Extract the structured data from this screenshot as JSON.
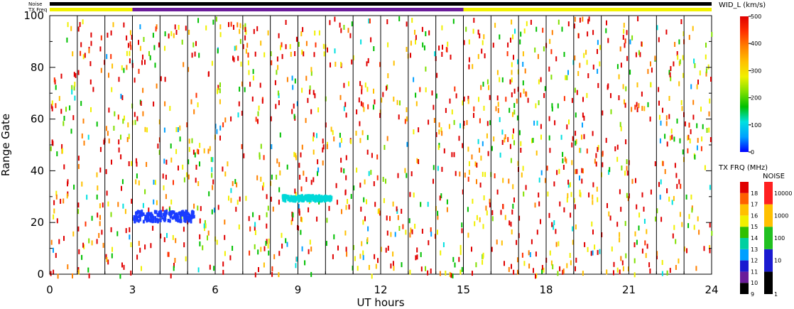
{
  "chart_data": {
    "type": "scatter",
    "xlabel": "UT hours",
    "ylabel": "Range Gate",
    "xlim": [
      0,
      24
    ],
    "ylim": [
      0,
      100
    ],
    "x_ticks": [
      "0",
      "3",
      "6",
      "9",
      "12",
      "15",
      "18",
      "21",
      "24"
    ],
    "y_ticks": [
      "0",
      "20",
      "40",
      "60",
      "80",
      "100"
    ],
    "scan_boundaries_hours": [
      1,
      2,
      3,
      4,
      5,
      6,
      7,
      8,
      9,
      10,
      11,
      12,
      13,
      14,
      15,
      16,
      17,
      18,
      19,
      20,
      21,
      22,
      23
    ],
    "top_strip": {
      "noise_label": "Noise",
      "txfreq_label": "TX Freq",
      "noise_color": "#000000",
      "txfreq_segments": [
        {
          "start": 0,
          "end": 3,
          "color": "#f2f200"
        },
        {
          "start": 3,
          "end": 15,
          "color": "#6a1b9a"
        },
        {
          "start": 15,
          "end": 24,
          "color": "#f2f200"
        }
      ]
    },
    "wid_scale": {
      "title": "WID_L (km/s)",
      "ticks": [
        "0",
        "100",
        "200",
        "300",
        "400",
        "500"
      ],
      "gradient": [
        "#0000ff",
        "#00a0ff",
        "#00e0e0",
        "#00c000",
        "#80e000",
        "#f0f000",
        "#ffc000",
        "#ff8000",
        "#ff3000",
        "#e00000"
      ]
    },
    "txfreq_scale": {
      "title": "TX FRQ (MHz)",
      "labels": [
        "9",
        "10",
        "11",
        "12",
        "13",
        "14",
        "15",
        "16",
        "17",
        "18"
      ],
      "colors": [
        "#000000",
        "#6a1b9a",
        "#1a1ad0",
        "#00a0ff",
        "#00d0a0",
        "#30c000",
        "#f0f000",
        "#ffc000",
        "#ff6000",
        "#e00000"
      ]
    },
    "noise_scale": {
      "title": "NOISE",
      "labels": [
        "1",
        "10",
        "100",
        "1000",
        "10000"
      ],
      "colors": [
        "#000000",
        "#1a1ad0",
        "#20c020",
        "#ffc000",
        "#ff2020"
      ]
    },
    "echo_colors": [
      "#e00000",
      "#ff3000",
      "#ff8000",
      "#ffc000",
      "#f0f000",
      "#80e000",
      "#00c000",
      "#00e0e0",
      "#00a0ff"
    ],
    "clusters": [
      {
        "x_start": 3.0,
        "x_end": 5.2,
        "y_center": 23,
        "y_spread": 4,
        "color": "#1a3cff"
      },
      {
        "x_start": 8.4,
        "x_end": 10.2,
        "y_center": 30,
        "y_spread": 2,
        "color": "#00d8d8"
      }
    ]
  }
}
